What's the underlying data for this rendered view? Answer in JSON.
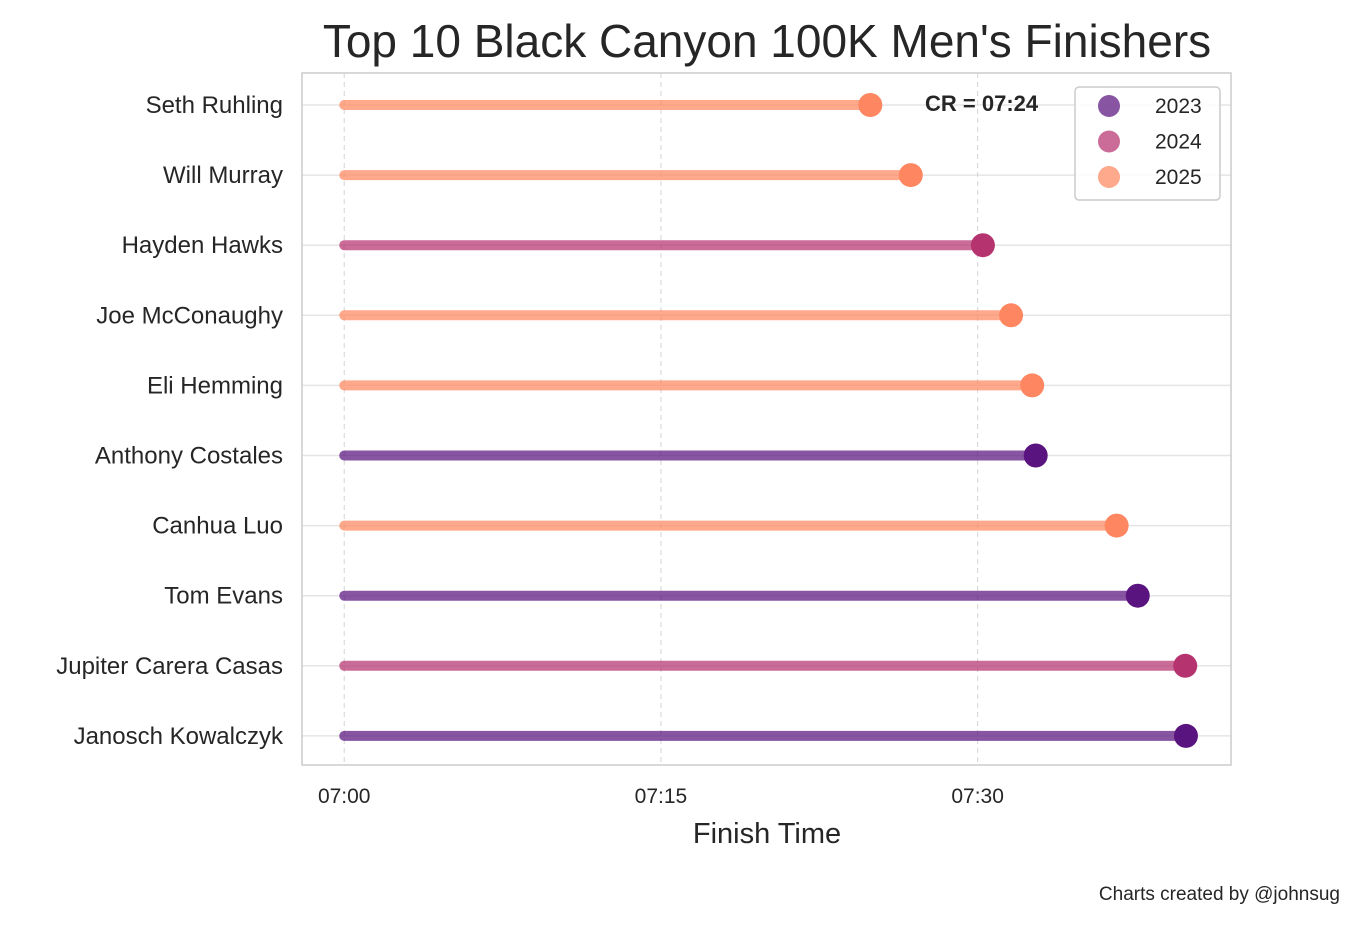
{
  "chart_data": {
    "type": "lollipop",
    "title": "Top 10 Black Canyon 100K Men's Finishers",
    "xlabel": "Finish Time",
    "ylabel": "",
    "x_domain_minutes_after_7": [
      -2,
      42
    ],
    "x_ticks": [
      {
        "label": "07:00",
        "minutes": 0
      },
      {
        "label": "07:15",
        "minutes": 15
      },
      {
        "label": "07:30",
        "minutes": 30
      }
    ],
    "grid": {
      "x": "dashed",
      "y": "solid"
    },
    "legend": {
      "placement": "top-right",
      "entries": [
        {
          "year": "2023",
          "color": "#5a1480"
        },
        {
          "year": "2024",
          "color": "#b5336f"
        },
        {
          "year": "2025",
          "color": "#fe8660"
        }
      ]
    },
    "annotation": "CR = 07:24",
    "finishers": [
      {
        "name": "Seth Ruhling",
        "year": "2025",
        "time": "07:24:55"
      },
      {
        "name": "Will Murray",
        "year": "2025",
        "time": "07:26:50"
      },
      {
        "name": "Hayden Hawks",
        "year": "2024",
        "time": "07:30:15"
      },
      {
        "name": "Joe McConaughy",
        "year": "2025",
        "time": "07:31:35"
      },
      {
        "name": "Eli Hemming",
        "year": "2025",
        "time": "07:32:35"
      },
      {
        "name": "Anthony Costales",
        "year": "2023",
        "time": "07:32:45"
      },
      {
        "name": "Canhua Luo",
        "year": "2025",
        "time": "07:36:35"
      },
      {
        "name": "Tom Evans",
        "year": "2023",
        "time": "07:37:35"
      },
      {
        "name": "Jupiter Carera Casas",
        "year": "2024",
        "time": "07:39:50"
      },
      {
        "name": "Janosch Kowalczyk",
        "year": "2023",
        "time": "07:39:52"
      }
    ]
  },
  "footer": {
    "credit": "Charts created by @johnsug"
  }
}
